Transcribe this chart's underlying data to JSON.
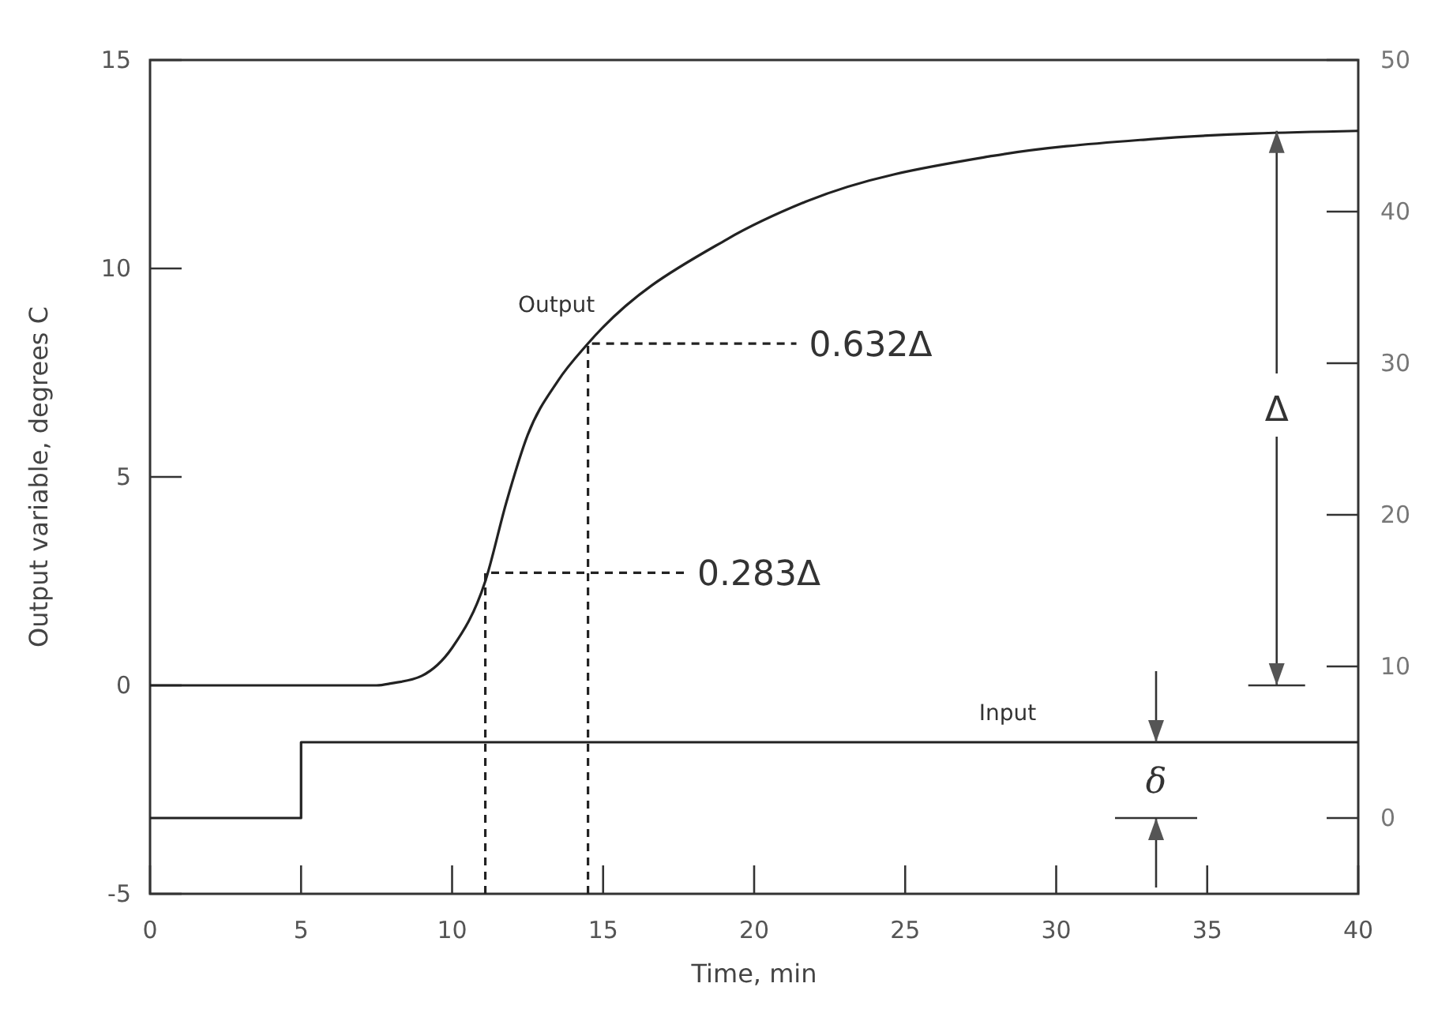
{
  "chart_data": {
    "type": "line",
    "xlabel": "Time, min",
    "ylabel": "Output variable, degrees C",
    "xlim": [
      0,
      40
    ],
    "xticks": [
      0,
      5,
      10,
      15,
      20,
      25,
      30,
      35,
      40
    ],
    "ylim": [
      -5,
      15
    ],
    "yticks": [
      -5,
      0,
      5,
      10,
      15
    ],
    "y2lim": [
      -5,
      50
    ],
    "y2ticks": [
      0,
      10,
      20,
      30,
      40,
      50
    ],
    "grid": false,
    "marker": "none",
    "series": [
      {
        "color": "#222222",
        "x": [
          0,
          7.5,
          8,
          9,
          10,
          11.1,
          11.8,
          12.5,
          13.5,
          14.5,
          19.1,
          21.7,
          27.9,
          33.1,
          40
        ],
        "values": [
          0,
          0,
          0.05,
          0.23,
          0.9,
          2.5,
          4.4,
          6.0,
          7.3,
          8.2,
          10.7,
          11.6,
          12.7,
          13.1,
          13.3
        ],
        "line_style": "solid"
      },
      {
        "color": "#222222",
        "x": [
          0,
          5,
          5,
          40
        ],
        "values": [
          0,
          0,
          5,
          5
        ],
        "axis": "y2",
        "line_style": "solid"
      },
      {
        "color": "#222222",
        "x": [
          11.1,
          11.1,
          17.7
        ],
        "values": [
          -5,
          2.7,
          2.7
        ],
        "line_style": "dashed"
      },
      {
        "color": "#222222",
        "x": [
          14.5,
          14.5,
          21.4
        ],
        "values": [
          -5,
          8.2,
          8.2
        ],
        "line_style": "dashed"
      }
    ],
    "annotations": [
      "Output",
      "Input",
      "0.283Δ",
      "0.632Δ",
      {
        "text": "Δ",
        "x": 37.3,
        "y": 13.3
      },
      "δ"
    ]
  }
}
